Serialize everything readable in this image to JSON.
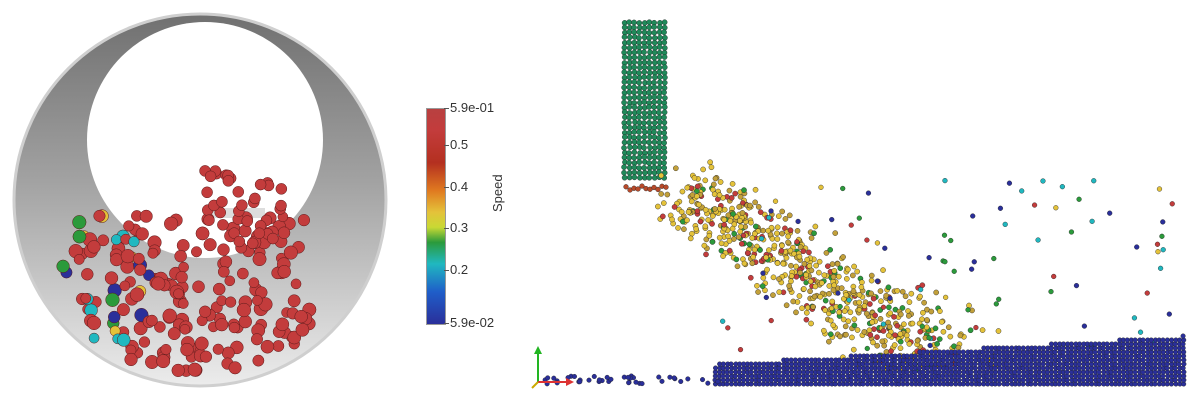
{
  "colorbar": {
    "title": "Speed",
    "max_label": "5.9e-01",
    "labels": [
      "0.5",
      "0.4",
      "0.3",
      "0.2"
    ],
    "min_label": "5.9e-02"
  },
  "colors": {
    "low": "#2a2f9a",
    "mid_low": "#20b8c0",
    "mid": "#2b9a3b",
    "mid_high": "#e4c23a",
    "high": "#c33c3c",
    "ring": "#8e8e8e"
  }
}
